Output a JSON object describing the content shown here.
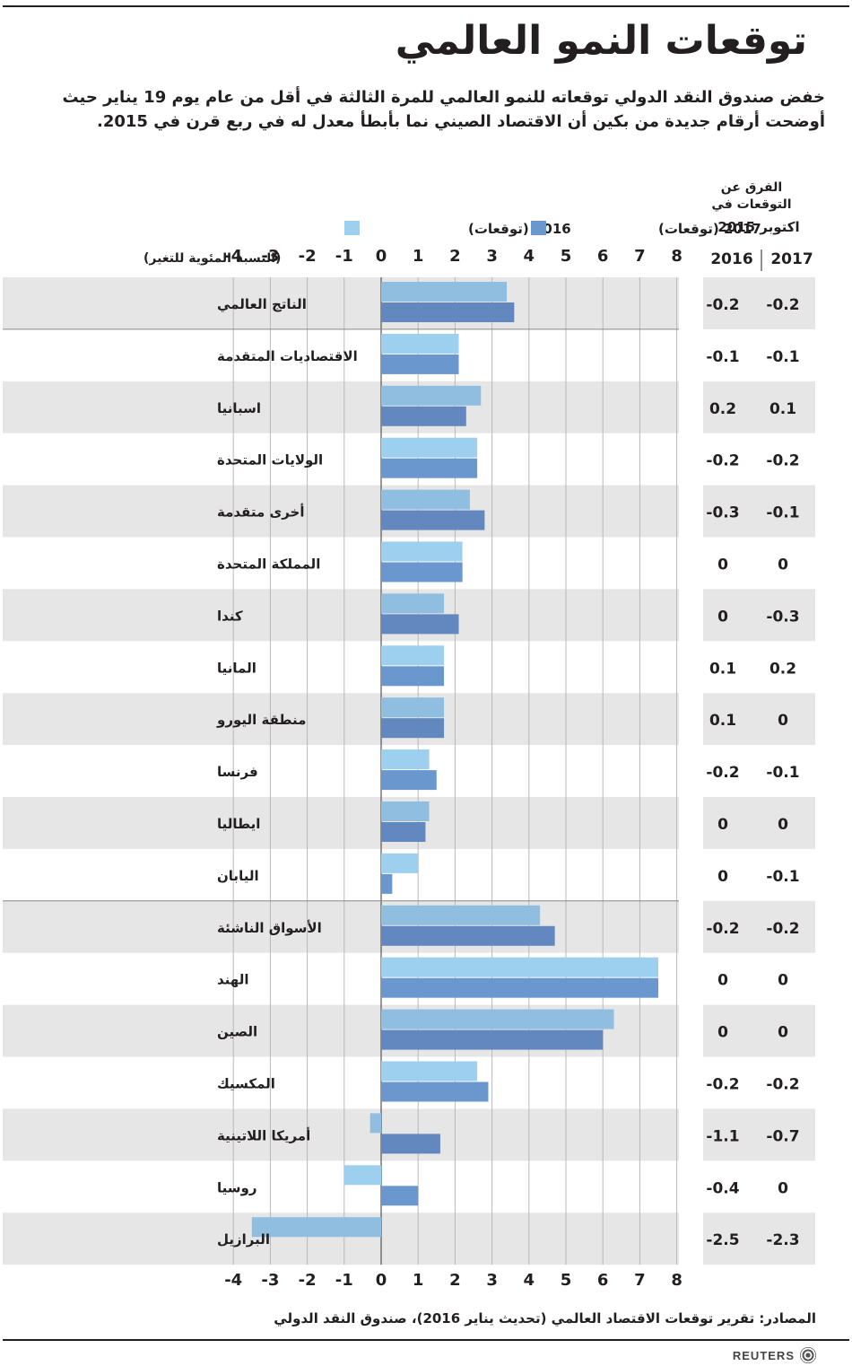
{
  "title": "توقعات النمو العالمي",
  "subtitle": "خفض صندوق النقد الدولي توقعاته للنمو العالمي للمرة الثالثة في أقل من عام يوم 19 يناير حيث أوضحت أرقام جديدة من بكين أن الاقتصاد الصيني نما بأبطأ معدل له في ربع قرن في 2015.",
  "legend": {
    "s2016": "2016 (توقعات)",
    "s2017": "2017 (توقعات)"
  },
  "unit_label": "(النسبة المئوية للتغير)",
  "diff_header": {
    "title_line1": "الفرق عن",
    "title_line2": "التوقعات في",
    "title_line3": "اكتوبر 2015",
    "col_2016": "2016",
    "col_2017": "2017"
  },
  "source": "المصادر: تقرير توقعات الاقتصاد العالمي  (تحديث يناير 2016)، صندوق النقد الدولي",
  "brand": "REUTERS",
  "colors": {
    "s2016": "#9dcfef",
    "s2017": "#6b97cf",
    "band": "#e6e6e6",
    "band_bar_2016": "#8fbee0",
    "band_bar_2017": "#6387bf"
  },
  "chart_data": {
    "type": "bar",
    "orientation": "horizontal",
    "xlim": [
      -4,
      8
    ],
    "xticks": [
      "-4",
      "-3",
      "-2",
      "-1",
      "0",
      "1",
      "2",
      "3",
      "4",
      "5",
      "6",
      "7",
      "8"
    ],
    "categories": [
      "الناتج العالمي",
      "الاقتصاديات المتقدمة",
      "اسبانيا",
      "الولايات المتحدة",
      "أخرى متقدمة",
      "المملكة المتحدة",
      "كندا",
      "المانيا",
      "منطقة اليورو",
      "فرنسا",
      "ايطاليا",
      "اليابان",
      "الأسواق الناشئة",
      "الهند",
      "الصين",
      "المكسيك",
      "أمريكا اللاتينية",
      "روسيا",
      "البرازيل"
    ],
    "series": [
      {
        "name": "2016 (توقعات)",
        "values": [
          3.4,
          2.1,
          2.7,
          2.6,
          2.4,
          2.2,
          1.7,
          1.7,
          1.7,
          1.3,
          1.3,
          1.0,
          4.3,
          7.5,
          6.3,
          2.6,
          -0.3,
          -1.0,
          -3.5
        ]
      },
      {
        "name": "2017 (توقعات)",
        "values": [
          3.6,
          2.1,
          2.3,
          2.6,
          2.8,
          2.2,
          2.1,
          1.7,
          1.7,
          1.5,
          1.2,
          0.3,
          4.7,
          7.5,
          6.0,
          2.9,
          1.6,
          1.0,
          0.0
        ]
      }
    ],
    "diff_2016": [
      "-0.2",
      "-0.1",
      "0.2",
      "-0.2",
      "-0.3",
      "0",
      "0",
      "0.1",
      "0.1",
      "-0.2",
      "0",
      "0",
      "-0.2",
      "0",
      "0",
      "-0.2",
      "-1.1",
      "-0.4",
      "-2.5"
    ],
    "diff_2017": [
      "-0.2",
      "-0.1",
      "0.1",
      "-0.2",
      "-0.1",
      "0",
      "-0.3",
      "0.2",
      "0",
      "-0.1",
      "0",
      "-0.1",
      "-0.2",
      "0",
      "0",
      "-0.2",
      "-0.7",
      "0",
      "-2.3"
    ],
    "shaded_rows": [
      0,
      2,
      4,
      6,
      8,
      10,
      12,
      14,
      16,
      18
    ],
    "group_separators_after": [
      0,
      11
    ],
    "grid": true
  }
}
